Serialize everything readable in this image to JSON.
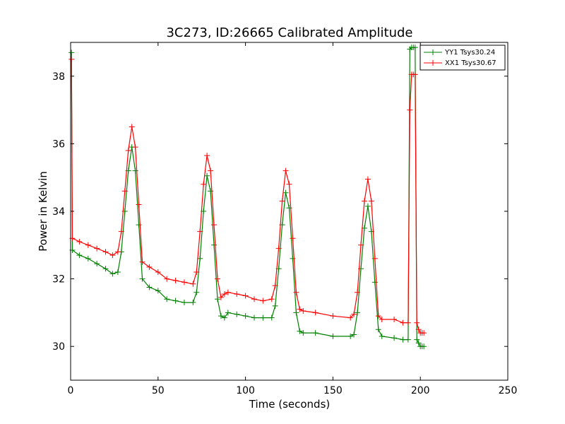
{
  "chart_data": {
    "type": "line",
    "title": "3C273, ID:26665 Calibrated Amplitude",
    "xlabel": "Time (seconds)",
    "ylabel": "Power in Kelvin",
    "xlim": [
      0,
      250
    ],
    "ylim": [
      29,
      39
    ],
    "xticks": [
      0,
      50,
      100,
      150,
      200,
      250
    ],
    "yticks": [
      30,
      32,
      34,
      36,
      38
    ],
    "grid": false,
    "legend_position": "top-right",
    "series": [
      {
        "name": "YY1 Tsys30.24",
        "color": "#008000",
        "marker": "+",
        "x": [
          0.5,
          1,
          5,
          10,
          15,
          20,
          24,
          27,
          29,
          31,
          33,
          35,
          37,
          39,
          41,
          45,
          50,
          55,
          60,
          65,
          70,
          72,
          74,
          76,
          78,
          80,
          82,
          84,
          86,
          88,
          90,
          95,
          100,
          105,
          110,
          115,
          117,
          119,
          121,
          123,
          125,
          127,
          129,
          131,
          133,
          140,
          150,
          160,
          162,
          164,
          166,
          168,
          170,
          172,
          174,
          176,
          178,
          185,
          190,
          193,
          194,
          195,
          196,
          197,
          198,
          199,
          200,
          201,
          202
        ],
        "y": [
          38.7,
          32.85,
          32.7,
          32.6,
          32.45,
          32.3,
          32.15,
          32.2,
          32.8,
          34.0,
          35.2,
          35.9,
          35.2,
          33.6,
          32.0,
          31.75,
          31.65,
          31.4,
          31.35,
          31.3,
          31.3,
          31.6,
          32.6,
          34.0,
          35.05,
          34.6,
          33.0,
          31.4,
          30.9,
          30.85,
          31.0,
          30.95,
          30.9,
          30.85,
          30.85,
          30.85,
          31.2,
          32.3,
          33.6,
          34.55,
          34.1,
          32.6,
          31.0,
          30.45,
          30.4,
          30.4,
          30.3,
          30.3,
          30.35,
          31.0,
          32.3,
          33.5,
          34.15,
          33.4,
          31.9,
          30.5,
          30.3,
          30.25,
          30.2,
          30.2,
          38.8,
          38.85,
          38.85,
          38.85,
          30.2,
          30.1,
          30.0,
          30.0,
          30.0
        ]
      },
      {
        "name": "XX1 Tsys30.67",
        "color": "#ff0000",
        "marker": "+",
        "x": [
          0.5,
          1,
          5,
          10,
          15,
          20,
          24,
          27,
          29,
          31,
          33,
          35,
          37,
          39,
          41,
          45,
          50,
          55,
          60,
          65,
          70,
          72,
          74,
          76,
          78,
          80,
          82,
          84,
          86,
          88,
          90,
          95,
          100,
          105,
          110,
          115,
          117,
          119,
          121,
          123,
          125,
          127,
          129,
          131,
          133,
          140,
          150,
          160,
          162,
          164,
          166,
          168,
          170,
          172,
          174,
          176,
          178,
          185,
          190,
          193,
          194,
          195,
          196,
          197,
          198,
          199,
          200,
          201,
          202
        ],
        "y": [
          38.5,
          33.2,
          33.1,
          33.0,
          32.9,
          32.8,
          32.7,
          32.8,
          33.4,
          34.6,
          35.8,
          36.5,
          35.9,
          34.2,
          32.5,
          32.35,
          32.2,
          32.0,
          31.95,
          31.9,
          31.85,
          32.2,
          33.4,
          34.8,
          35.65,
          35.2,
          33.6,
          32.0,
          31.45,
          31.55,
          31.6,
          31.55,
          31.5,
          31.4,
          31.35,
          31.4,
          31.8,
          32.9,
          34.3,
          35.2,
          34.8,
          33.2,
          31.6,
          31.1,
          31.05,
          31.0,
          30.9,
          30.85,
          30.95,
          31.6,
          33.0,
          34.3,
          34.95,
          34.3,
          32.6,
          30.9,
          30.8,
          30.8,
          30.7,
          30.7,
          37.0,
          38.05,
          38.05,
          38.05,
          30.7,
          30.5,
          30.4,
          30.4,
          30.4
        ]
      }
    ]
  }
}
